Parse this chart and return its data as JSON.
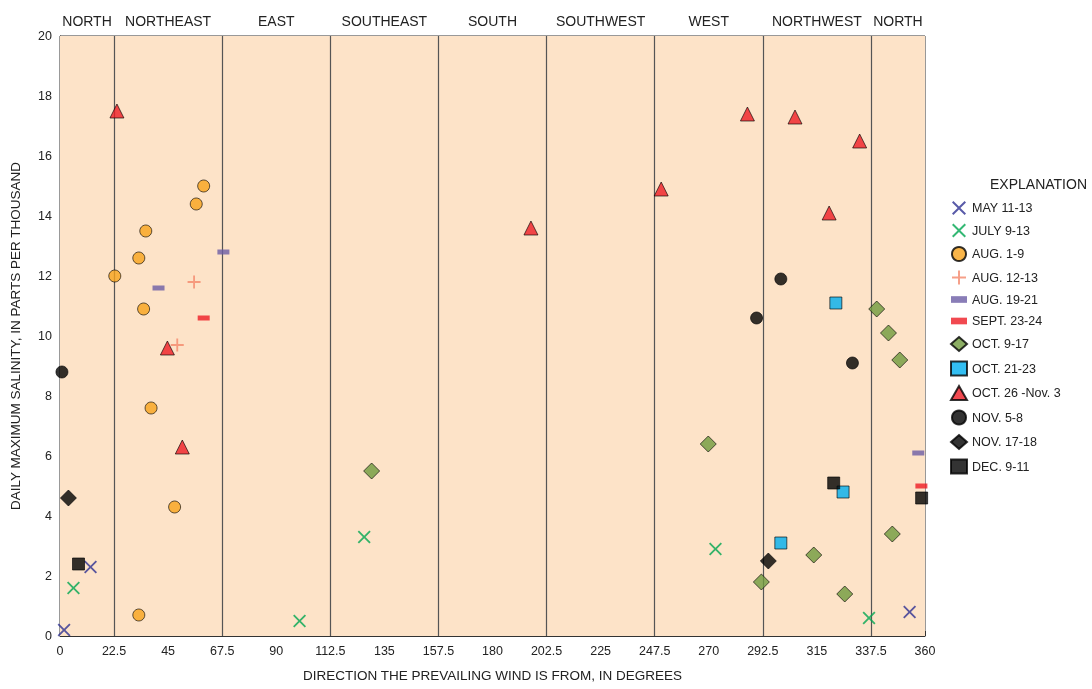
{
  "chart_data": {
    "type": "scatter",
    "xlabel": "DIRECTION THE PREVAILING WIND IS FROM, IN DEGREES",
    "ylabel": "DAILY MAXIMUM SALINITY, IN PARTS PER THOUSAND",
    "legend_title": "EXPLANATION",
    "legend": "right",
    "grid": false,
    "xlim": [
      0,
      360
    ],
    "xticks": [
      0,
      22.5,
      45,
      67.5,
      90,
      112.5,
      135,
      157.5,
      180,
      202.5,
      225,
      247.5,
      270,
      292.5,
      315,
      337.5,
      360
    ],
    "ylim": [
      0,
      20
    ],
    "yticks": [
      0,
      2,
      4,
      6,
      8,
      10,
      12,
      14,
      16,
      18,
      20
    ],
    "bands": [
      {
        "axis": "x",
        "from": 0,
        "to": 22.5,
        "label": "NORTH",
        "color": "#fde3c8"
      },
      {
        "axis": "x",
        "from": 22.5,
        "to": 67.5,
        "label": "NORTHEAST",
        "color": "#fde3c8"
      },
      {
        "axis": "x",
        "from": 67.5,
        "to": 112.5,
        "label": "EAST",
        "color": "#fde3c8"
      },
      {
        "axis": "x",
        "from": 112.5,
        "to": 157.5,
        "label": "SOUTHEAST",
        "color": "#fde3c8"
      },
      {
        "axis": "x",
        "from": 157.5,
        "to": 202.5,
        "label": "SOUTH",
        "color": "#fde3c8"
      },
      {
        "axis": "x",
        "from": 202.5,
        "to": 247.5,
        "label": "SOUTHWEST",
        "color": "#fde3c8"
      },
      {
        "axis": "x",
        "from": 247.5,
        "to": 292.5,
        "label": "WEST",
        "color": "#fde3c8"
      },
      {
        "axis": "x",
        "from": 292.5,
        "to": 337.5,
        "label": "NORTHWEST",
        "color": "#fde3c8"
      },
      {
        "axis": "x",
        "from": 337.5,
        "to": 360,
        "label": "NORTH",
        "color": "#fde3c8"
      }
    ],
    "ref_lines": [
      {
        "axis": "x",
        "value": 22.5,
        "color": "#555555"
      },
      {
        "axis": "x",
        "value": 67.5,
        "color": "#555555"
      },
      {
        "axis": "x",
        "value": 112.5,
        "color": "#555555"
      },
      {
        "axis": "x",
        "value": 157.5,
        "color": "#555555"
      },
      {
        "axis": "x",
        "value": 202.5,
        "color": "#555555"
      },
      {
        "axis": "x",
        "value": 247.5,
        "color": "#555555"
      },
      {
        "axis": "x",
        "value": 292.5,
        "color": "#555555"
      },
      {
        "axis": "x",
        "value": 337.5,
        "color": "#555555"
      }
    ],
    "series": [
      {
        "name": "MAY 11-13",
        "color": "#2e3192",
        "marker": "x",
        "x": [
          1.7,
          12.7,
          353.6
        ],
        "values": [
          0.2,
          2.3,
          0.8
        ]
      },
      {
        "name": "JULY 9-13",
        "color": "#00a651",
        "marker": "x",
        "x": [
          5.6,
          99.7,
          126.6,
          272.8,
          336.7
        ],
        "values": [
          1.6,
          0.5,
          3.3,
          2.9,
          0.6
        ]
      },
      {
        "name": "AUG. 1-9",
        "color": "#f7a21b",
        "marker": "circle",
        "x": [
          59.8,
          56.7,
          35.7,
          32.8,
          22.8,
          34.8,
          37.9,
          47.7,
          32.8
        ],
        "values": [
          15.0,
          14.4,
          13.5,
          12.6,
          12.0,
          10.9,
          7.6,
          4.3,
          0.7
        ]
      },
      {
        "name": "AUG. 12-13",
        "color": "#f4876a",
        "marker": "cross",
        "x": [
          55.8,
          48.8
        ],
        "values": [
          11.8,
          9.7
        ]
      },
      {
        "name": "AUG. 19-21",
        "color": "#6b5ca5",
        "x": [
          41.0,
          68.0,
          357.2
        ],
        "values": [
          11.6,
          12.8,
          6.1
        ]
      },
      {
        "name": "SEPT. 23-24",
        "color": "#ed1c24",
        "x": [
          59.8,
          358.5
        ],
        "values": [
          10.6,
          5.0
        ]
      },
      {
        "name": "OCT. 9-17",
        "color": "#6f9a3d",
        "marker": "diamond",
        "x": [
          129.7,
          339.9,
          344.8,
          349.5,
          269.8,
          346.4,
          313.7,
          291.9,
          326.6
        ],
        "values": [
          5.5,
          10.9,
          10.1,
          9.2,
          6.4,
          3.4,
          2.7,
          1.8,
          1.4
        ]
      },
      {
        "name": "OCT. 21-23",
        "color": "#00aeef",
        "marker": "square",
        "x": [
          322.9,
          325.9,
          300.0
        ],
        "values": [
          11.1,
          4.8,
          3.1
        ]
      },
      {
        "name": "OCT. 26 -Nov. 3",
        "color": "#ed1c24",
        "marker": "triangle",
        "x": [
          23.7,
          44.7,
          50.9,
          196.0,
          250.2,
          286.1,
          305.9,
          332.8,
          320.1
        ],
        "values": [
          17.5,
          9.6,
          6.3,
          13.6,
          14.9,
          17.4,
          17.3,
          16.5,
          14.1
        ]
      },
      {
        "name": "NOV. 5-8",
        "color": "#000000",
        "marker": "circle",
        "x": [
          0.8,
          289.9,
          300.0,
          329.8
        ],
        "values": [
          8.8,
          10.6,
          11.9,
          9.1
        ]
      },
      {
        "name": "NOV. 17-18",
        "color": "#000000",
        "marker": "diamond",
        "x": [
          3.5,
          294.8
        ],
        "values": [
          4.6,
          2.5
        ]
      },
      {
        "name": "DEC. 9-11",
        "color": "#000000",
        "marker": "square",
        "x": [
          7.7,
          322.0,
          358.6
        ],
        "values": [
          2.4,
          5.1,
          4.6
        ]
      }
    ]
  }
}
